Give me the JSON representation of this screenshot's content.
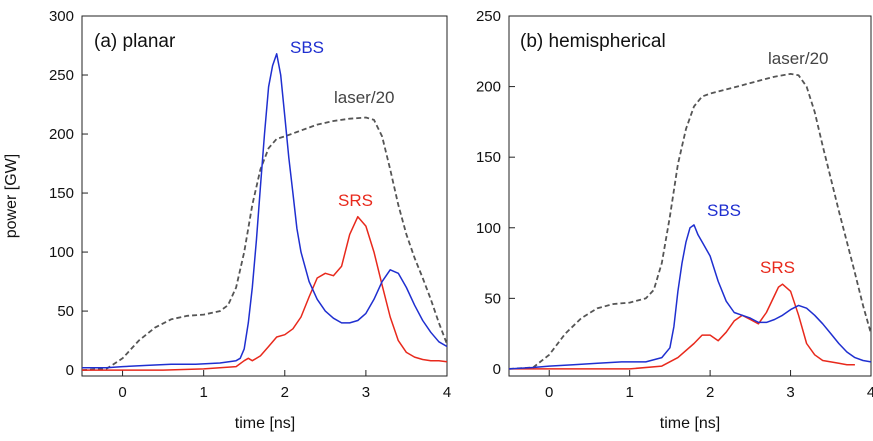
{
  "chart_data": [
    {
      "type": "line",
      "title": "(a) planar",
      "xlabel": "time [ns]",
      "ylabel": "power [GW]",
      "xlim": [
        -0.5,
        4
      ],
      "ylim": [
        -5,
        300
      ],
      "xticks": [
        0,
        1,
        2,
        3,
        4
      ],
      "yticks": [
        0,
        50,
        100,
        150,
        200,
        250,
        300
      ],
      "grid": false,
      "series": [
        {
          "name": "SBS",
          "color": "#1f2fd0",
          "x": [
            -0.5,
            -0.2,
            0,
            0.3,
            0.6,
            0.9,
            1.2,
            1.4,
            1.45,
            1.5,
            1.55,
            1.6,
            1.65,
            1.7,
            1.75,
            1.8,
            1.85,
            1.9,
            1.95,
            2.0,
            2.05,
            2.1,
            2.15,
            2.2,
            2.3,
            2.4,
            2.5,
            2.6,
            2.7,
            2.8,
            2.9,
            3.0,
            3.1,
            3.2,
            3.3,
            3.4,
            3.5,
            3.6,
            3.7,
            3.8,
            3.9,
            4.0
          ],
          "values": [
            2,
            2,
            3,
            4,
            5,
            5,
            6,
            8,
            10,
            18,
            40,
            70,
            110,
            155,
            200,
            240,
            258,
            268,
            250,
            215,
            180,
            150,
            120,
            100,
            75,
            60,
            50,
            44,
            40,
            40,
            42,
            48,
            60,
            75,
            85,
            82,
            70,
            55,
            42,
            32,
            24,
            20
          ]
        },
        {
          "name": "SRS",
          "color": "#e8291c",
          "x": [
            -0.5,
            0,
            0.5,
            1.0,
            1.4,
            1.5,
            1.55,
            1.6,
            1.7,
            1.8,
            1.9,
            2.0,
            2.1,
            2.2,
            2.3,
            2.4,
            2.5,
            2.6,
            2.7,
            2.8,
            2.9,
            3.0,
            3.1,
            3.2,
            3.3,
            3.4,
            3.5,
            3.6,
            3.7,
            3.8,
            3.9,
            4.0
          ],
          "values": [
            0,
            0,
            0,
            1,
            3,
            8,
            10,
            8,
            12,
            20,
            28,
            30,
            35,
            45,
            62,
            78,
            82,
            80,
            88,
            115,
            130,
            122,
            100,
            72,
            45,
            25,
            15,
            11,
            9,
            8,
            8,
            7
          ]
        },
        {
          "name": "laser/20",
          "color": "#555555",
          "dash": true,
          "x": [
            -0.5,
            -0.2,
            0,
            0.2,
            0.4,
            0.6,
            0.8,
            1.0,
            1.2,
            1.3,
            1.4,
            1.5,
            1.6,
            1.7,
            1.8,
            1.9,
            2.0,
            2.2,
            2.4,
            2.6,
            2.8,
            3.0,
            3.1,
            3.2,
            3.3,
            3.4,
            3.5,
            3.6,
            3.7,
            3.8,
            3.9,
            4.0
          ],
          "values": [
            0,
            1,
            10,
            25,
            36,
            43,
            46,
            47,
            50,
            55,
            70,
            100,
            140,
            170,
            188,
            196,
            198,
            203,
            208,
            211,
            213,
            214,
            212,
            198,
            170,
            140,
            115,
            95,
            78,
            60,
            40,
            22
          ]
        }
      ],
      "annotations": [
        {
          "text": "SBS",
          "color": "#1f2fd0"
        },
        {
          "text": "SRS",
          "color": "#e8291c"
        },
        {
          "text": "laser/20",
          "color": "#444444"
        }
      ]
    },
    {
      "type": "line",
      "title": "(b) hemispherical",
      "xlabel": "time [ns]",
      "ylabel": "",
      "xlim": [
        -0.5,
        4
      ],
      "ylim": [
        -5,
        250
      ],
      "xticks": [
        0,
        1,
        2,
        3,
        4
      ],
      "yticks": [
        0,
        50,
        100,
        150,
        200,
        250
      ],
      "grid": false,
      "series": [
        {
          "name": "SBS",
          "color": "#1f2fd0",
          "x": [
            -0.5,
            -0.2,
            0,
            0.3,
            0.6,
            0.9,
            1.2,
            1.4,
            1.5,
            1.55,
            1.6,
            1.65,
            1.7,
            1.75,
            1.8,
            1.85,
            1.9,
            2.0,
            2.1,
            2.2,
            2.3,
            2.4,
            2.5,
            2.6,
            2.7,
            2.8,
            2.9,
            3.0,
            3.1,
            3.2,
            3.3,
            3.4,
            3.5,
            3.6,
            3.7,
            3.8,
            3.9,
            4.0
          ],
          "values": [
            0,
            1,
            2,
            3,
            4,
            5,
            5,
            8,
            15,
            30,
            55,
            75,
            90,
            100,
            102,
            95,
            90,
            80,
            62,
            48,
            40,
            38,
            36,
            33,
            33,
            35,
            38,
            42,
            45,
            43,
            38,
            32,
            25,
            18,
            12,
            8,
            6,
            5
          ]
        },
        {
          "name": "SRS",
          "color": "#e8291c",
          "x": [
            -0.5,
            0,
            0.5,
            1.0,
            1.4,
            1.6,
            1.8,
            1.9,
            2.0,
            2.1,
            2.2,
            2.3,
            2.4,
            2.5,
            2.6,
            2.7,
            2.8,
            2.85,
            2.9,
            3.0,
            3.1,
            3.2,
            3.3,
            3.4,
            3.5,
            3.6,
            3.7,
            3.8
          ],
          "values": [
            0,
            0,
            0,
            0,
            2,
            8,
            18,
            24,
            24,
            20,
            26,
            34,
            38,
            35,
            32,
            40,
            52,
            58,
            60,
            55,
            38,
            18,
            10,
            6,
            5,
            4,
            3,
            3
          ]
        },
        {
          "name": "laser/20",
          "color": "#555555",
          "dash": true,
          "x": [
            -0.5,
            -0.2,
            0,
            0.2,
            0.4,
            0.6,
            0.8,
            1.0,
            1.2,
            1.3,
            1.4,
            1.5,
            1.6,
            1.7,
            1.8,
            1.9,
            2.0,
            2.2,
            2.4,
            2.6,
            2.8,
            3.0,
            3.1,
            3.2,
            3.3,
            3.4,
            3.5,
            3.6,
            3.7,
            3.8,
            3.9,
            4.0
          ],
          "values": [
            0,
            1,
            10,
            25,
            36,
            43,
            46,
            47,
            50,
            56,
            75,
            108,
            145,
            170,
            186,
            193,
            195,
            198,
            201,
            204,
            207,
            209,
            208,
            200,
            182,
            158,
            135,
            112,
            90,
            68,
            45,
            25
          ]
        }
      ],
      "annotations": [
        {
          "text": "SBS",
          "color": "#1f2fd0"
        },
        {
          "text": "SRS",
          "color": "#e8291c"
        },
        {
          "text": "laser/20",
          "color": "#444444"
        }
      ]
    }
  ]
}
